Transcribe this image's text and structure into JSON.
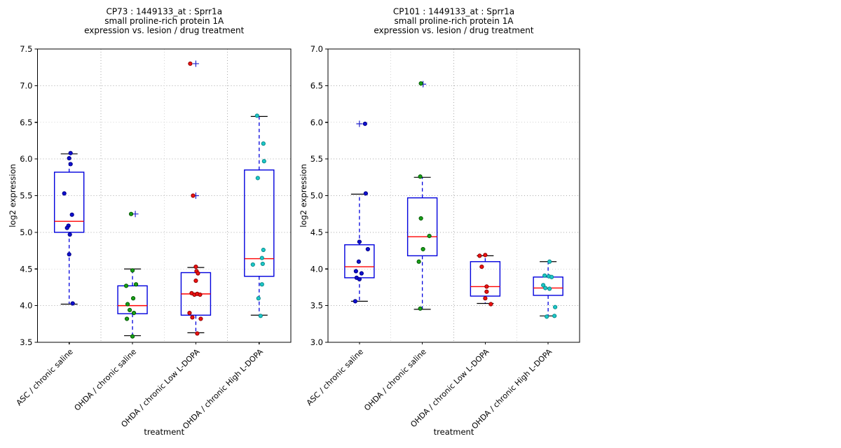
{
  "figure": {
    "background": "#ffffff",
    "grid_color": "#aaaaaa",
    "axes_color": "#000000"
  },
  "chart_data": [
    {
      "type": "box",
      "id": "cp73",
      "title_lines": [
        "CP73 : 1449133_at : Sprr1a",
        "small proline-rich protein 1A",
        "expression vs. lesion / drug treatment"
      ],
      "xlabel": "treatment",
      "ylabel": "log2 expression",
      "ylim": [
        3.5,
        7.5
      ],
      "ytick_step": 0.5,
      "grid": {
        "horizontal": "dotted",
        "vertical_between_categories": "dotted"
      },
      "colors": {
        "box": "#0000dd",
        "median": "#ff0000",
        "whisker": "#0000dd",
        "cap": "#000000",
        "flier": "#2222cc"
      },
      "categories": [
        "ASC / chronic saline",
        "OHDA / chronic saline",
        "OHDA / chronic Low L-DOPA",
        "OHDA / chronic High L-DOPA"
      ],
      "groups": [
        {
          "category": "ASC / chronic saline",
          "point_fill": "#0f0fd0",
          "point_edge": "#000085",
          "box": {
            "q1": 5.0,
            "median": 5.15,
            "q3": 5.82,
            "whisker_low": 4.02,
            "whisker_high": 6.07
          },
          "points": [
            [
              2,
              6.08
            ],
            [
              0,
              6.01
            ],
            [
              2,
              5.93
            ],
            [
              -7,
              5.53
            ],
            [
              4,
              5.24
            ],
            [
              -1,
              5.09
            ],
            [
              -3,
              5.06
            ],
            [
              1,
              4.97
            ],
            [
              0,
              4.7
            ],
            [
              5,
              4.03
            ]
          ],
          "fliers": []
        },
        {
          "category": "OHDA / chronic saline",
          "point_fill": "#18a018",
          "point_edge": "#015701",
          "box": {
            "q1": 3.89,
            "median": 4.0,
            "q3": 4.27,
            "whisker_low": 3.59,
            "whisker_high": 4.5
          },
          "points": [
            [
              -2,
              5.25
            ],
            [
              0,
              4.48
            ],
            [
              5,
              4.29
            ],
            [
              -9,
              4.27
            ],
            [
              1,
              4.1
            ],
            [
              -7,
              4.02
            ],
            [
              -4,
              3.94
            ],
            [
              2,
              3.9
            ],
            [
              -8,
              3.82
            ],
            [
              0,
              3.58
            ]
          ],
          "fliers": [
            [
              4,
              5.25
            ]
          ]
        },
        {
          "category": "OHDA / chronic Low L-DOPA",
          "point_fill": "#ef1212",
          "point_edge": "#8f0000",
          "box": {
            "q1": 3.87,
            "median": 4.16,
            "q3": 4.45,
            "whisker_low": 3.63,
            "whisker_high": 4.52
          },
          "points": [
            [
              -8,
              7.3
            ],
            [
              -4,
              5.5
            ],
            [
              0,
              4.53
            ],
            [
              1,
              4.47
            ],
            [
              3,
              4.44
            ],
            [
              0,
              4.34
            ],
            [
              -6,
              4.17
            ],
            [
              -2,
              4.15
            ],
            [
              2,
              4.16
            ],
            [
              6,
              4.15
            ],
            [
              -9,
              3.9
            ],
            [
              -5,
              3.84
            ],
            [
              7,
              3.82
            ],
            [
              2,
              3.62
            ]
          ],
          "fliers": [
            [
              0,
              7.3
            ],
            [
              0,
              5.5
            ]
          ]
        },
        {
          "category": "OHDA / chronic High L-DOPA",
          "point_fill": "#1cc8c8",
          "point_edge": "#0c8b8b",
          "box": {
            "q1": 4.4,
            "median": 4.64,
            "q3": 5.85,
            "whisker_low": 3.87,
            "whisker_high": 6.58
          },
          "points": [
            [
              -3,
              6.59
            ],
            [
              6,
              6.21
            ],
            [
              7,
              5.97
            ],
            [
              -2,
              5.74
            ],
            [
              6,
              4.76
            ],
            [
              4,
              4.65
            ],
            [
              5,
              4.57
            ],
            [
              -9,
              4.56
            ],
            [
              4,
              4.29
            ],
            [
              -1,
              4.1
            ],
            [
              2,
              3.86
            ]
          ],
          "fliers": []
        }
      ]
    },
    {
      "type": "box",
      "id": "cp101",
      "title_lines": [
        "CP101 : 1449133_at : Sprr1a",
        "small proline-rich protein 1A",
        "expression vs. lesion / drug treatment"
      ],
      "xlabel": "treatment",
      "ylabel": "log2 expression",
      "ylim": [
        3.0,
        7.0
      ],
      "ytick_step": 0.5,
      "grid": {
        "horizontal": "dotted",
        "vertical_between_categories": "dotted"
      },
      "colors": {
        "box": "#0000dd",
        "median": "#ff0000",
        "whisker": "#0000dd",
        "cap": "#000000",
        "flier": "#2222cc"
      },
      "categories": [
        "ASC / chronic saline",
        "OHDA / chronic saline",
        "OHDA / chronic Low L-DOPA",
        "OHDA / chronic High L-DOPA"
      ],
      "groups": [
        {
          "category": "ASC / chronic saline",
          "point_fill": "#0f0fd0",
          "point_edge": "#000085",
          "box": {
            "q1": 3.88,
            "median": 4.03,
            "q3": 4.33,
            "whisker_low": 3.56,
            "whisker_high": 5.02
          },
          "points": [
            [
              8,
              5.98
            ],
            [
              9,
              5.03
            ],
            [
              0,
              4.37
            ],
            [
              12,
              4.27
            ],
            [
              -1,
              4.1
            ],
            [
              -5,
              3.97
            ],
            [
              3,
              3.94
            ],
            [
              -4,
              3.88
            ],
            [
              0,
              3.86
            ],
            [
              -6,
              3.56
            ]
          ],
          "fliers": [
            [
              0,
              5.98
            ]
          ]
        },
        {
          "category": "OHDA / chronic saline",
          "point_fill": "#18a018",
          "point_edge": "#015701",
          "box": {
            "q1": 4.18,
            "median": 4.44,
            "q3": 4.97,
            "whisker_low": 3.45,
            "whisker_high": 5.25
          },
          "points": [
            [
              -2,
              6.53
            ],
            [
              -3,
              5.26
            ],
            [
              -2,
              4.69
            ],
            [
              10,
              4.45
            ],
            [
              1,
              4.27
            ],
            [
              -5,
              4.1
            ],
            [
              -3,
              3.46
            ]
          ],
          "fliers": [
            [
              1,
              6.52
            ]
          ]
        },
        {
          "category": "OHDA / chronic Low L-DOPA",
          "point_fill": "#ef1212",
          "point_edge": "#8f0000",
          "box": {
            "q1": 3.63,
            "median": 3.76,
            "q3": 4.1,
            "whisker_low": 3.53,
            "whisker_high": 4.18
          },
          "points": [
            [
              -8,
              4.18
            ],
            [
              0,
              4.19
            ],
            [
              -5,
              4.03
            ],
            [
              2,
              3.76
            ],
            [
              2,
              3.69
            ],
            [
              0,
              3.6
            ],
            [
              8,
              3.52
            ]
          ],
          "fliers": []
        },
        {
          "category": "OHDA / chronic High L-DOPA",
          "point_fill": "#1cc8c8",
          "point_edge": "#0c8b8b",
          "box": {
            "q1": 3.64,
            "median": 3.74,
            "q3": 3.89,
            "whisker_low": 3.36,
            "whisker_high": 4.1
          },
          "points": [
            [
              2,
              4.1
            ],
            [
              -5,
              3.91
            ],
            [
              1,
              3.9
            ],
            [
              5,
              3.89
            ],
            [
              -7,
              3.78
            ],
            [
              -4,
              3.74
            ],
            [
              2,
              3.73
            ],
            [
              10,
              3.48
            ],
            [
              9,
              3.36
            ],
            [
              -2,
              3.35
            ]
          ],
          "fliers": []
        }
      ]
    }
  ]
}
